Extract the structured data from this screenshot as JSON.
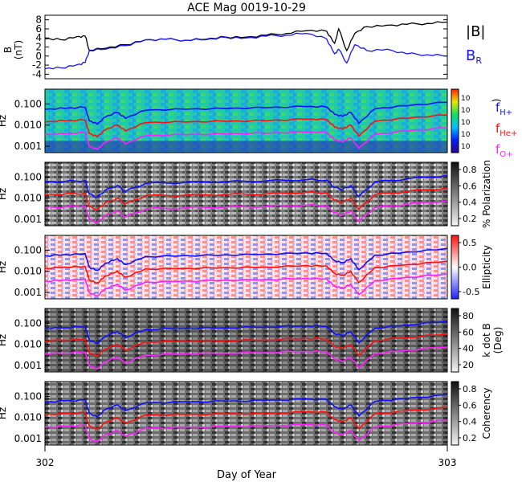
{
  "title": "ACE Mag 0019-10-29",
  "xlabel": "Day of Year",
  "colors": {
    "bmag": "#000000",
    "br": "#1414ff",
    "h": "#1010ff",
    "he": "#ff1010",
    "o": "#ff20ff"
  },
  "chart_data": [
    {
      "type": "line",
      "panel": "field",
      "ylabel": "B (nT)",
      "ylim": [
        -5,
        9
      ],
      "yticks": [
        "8",
        "6",
        "4",
        "2",
        "0",
        "-2",
        "-4"
      ],
      "legend": [
        {
          "name": "|B|",
          "color": "#000000"
        },
        {
          "name": "B",
          "sub": "R",
          "color": "#1414ff"
        }
      ],
      "x": [
        302.0,
        302.04,
        302.08,
        302.1,
        302.11,
        302.15,
        302.2,
        302.25,
        302.3,
        302.35,
        302.4,
        302.45,
        302.5,
        302.55,
        302.6,
        302.65,
        302.7,
        302.72,
        302.73,
        302.75,
        302.77,
        302.8,
        302.85,
        302.9,
        302.95,
        303.0
      ],
      "series": [
        {
          "name": "|B|",
          "values": [
            3.8,
            3.6,
            4.3,
            4.4,
            1.3,
            1.7,
            2.5,
            3.6,
            3.7,
            3.5,
            3.7,
            4.2,
            4.2,
            4.6,
            5.0,
            5.6,
            5.5,
            2.8,
            6.0,
            1.2,
            5.0,
            6.5,
            6.8,
            7.0,
            7.2,
            7.5
          ]
        },
        {
          "name": "B_R",
          "values": [
            -2.8,
            -2.6,
            -1.9,
            -1.4,
            1.2,
            1.5,
            2.3,
            3.6,
            3.7,
            3.5,
            3.6,
            4.1,
            4.0,
            4.4,
            4.6,
            5.0,
            3.8,
            0.5,
            1.5,
            -1.5,
            2.5,
            1.2,
            1.5,
            0.5,
            0.3,
            0.0
          ]
        }
      ]
    },
    {
      "type": "heatmap",
      "panel": "power",
      "ylabel": "Hz",
      "yticks": [
        "0.100",
        "0.010",
        "0.001"
      ],
      "ylog": [
        0.0005,
        0.5
      ],
      "colorbar_labels": [
        "10",
        "10",
        "10",
        "10",
        "10"
      ],
      "colorbar_title": ")",
      "series_labels": [
        {
          "name": "f",
          "sub": "H+",
          "color": "#1010ff"
        },
        {
          "name": "f",
          "sub": "He+",
          "color": "#ff1010"
        },
        {
          "name": "f",
          "sub": "O+",
          "color": "#ff20ff"
        }
      ]
    },
    {
      "type": "heatmap",
      "panel": "polarization",
      "ylabel": "Hz",
      "yticks": [
        "0.100",
        "0.010",
        "0.001"
      ],
      "ylog": [
        0.0005,
        0.5
      ],
      "colorbar_ticks": [
        "0.8",
        "0.6",
        "0.4",
        "0.2"
      ],
      "colorbar_title": "% Polarization"
    },
    {
      "type": "heatmap",
      "panel": "ellipticity",
      "ylabel": "Hz",
      "yticks": [
        "0.100",
        "0.010",
        "0.001"
      ],
      "ylog": [
        0.0005,
        0.5
      ],
      "colorbar_ticks": [
        "0.5",
        "0.0",
        "-0.5"
      ],
      "colorbar_title": "Ellipticity"
    },
    {
      "type": "heatmap",
      "panel": "kdotb",
      "ylabel": "Hz",
      "yticks": [
        "0.100",
        "0.010",
        "0.001"
      ],
      "ylog": [
        0.0005,
        0.5
      ],
      "colorbar_ticks": [
        "80",
        "60",
        "40",
        "20"
      ],
      "colorbar_title": "k dot B",
      "colorbar_subtitle": "(Deg)"
    },
    {
      "type": "heatmap",
      "panel": "coherency",
      "ylabel": "Hz",
      "yticks": [
        "0.100",
        "0.010",
        "0.001"
      ],
      "ylog": [
        0.0005,
        0.5
      ],
      "colorbar_ticks": [
        "0.8",
        "0.6",
        "0.4",
        "0.2"
      ],
      "colorbar_title": "Coherency"
    }
  ],
  "xaxis": {
    "range": [
      302,
      303
    ],
    "ticks": [
      "302",
      "303"
    ]
  },
  "cyclotron": {
    "x": [
      302.0,
      302.05,
      302.1,
      302.11,
      302.13,
      302.15,
      302.18,
      302.2,
      302.25,
      302.35,
      302.45,
      302.55,
      302.65,
      302.7,
      302.72,
      302.74,
      302.76,
      302.78,
      302.82,
      302.9,
      303.0
    ],
    "H": [
      0.055,
      0.062,
      0.068,
      0.016,
      0.011,
      0.024,
      0.04,
      0.021,
      0.05,
      0.056,
      0.06,
      0.066,
      0.075,
      0.071,
      0.032,
      0.026,
      0.04,
      0.012,
      0.058,
      0.082,
      0.12
    ],
    "He": [
      0.014,
      0.016,
      0.017,
      0.004,
      0.0028,
      0.006,
      0.01,
      0.0053,
      0.013,
      0.014,
      0.015,
      0.016,
      0.019,
      0.018,
      0.008,
      0.0065,
      0.01,
      0.003,
      0.015,
      0.021,
      0.03
    ],
    "O": [
      0.0035,
      0.0039,
      0.0043,
      0.001,
      0.0007,
      0.0015,
      0.0025,
      0.0013,
      0.0031,
      0.0035,
      0.0038,
      0.0041,
      0.0047,
      0.0044,
      0.002,
      0.0016,
      0.0025,
      0.0008,
      0.0036,
      0.0052,
      0.0075
    ]
  }
}
